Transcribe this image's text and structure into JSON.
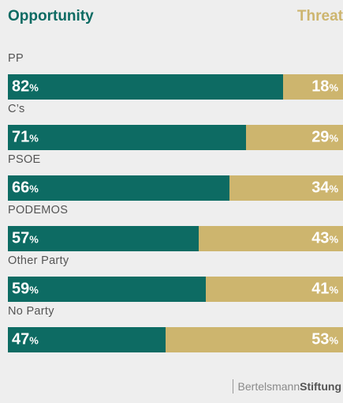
{
  "colors": {
    "opportunity": "#0d6b63",
    "threat": "#cdb56e"
  },
  "chart_data": {
    "type": "bar",
    "orientation": "horizontal",
    "stacked": true,
    "percent_suffix": "%",
    "legend": {
      "opportunity": "Opportunity",
      "threat": "Threat"
    },
    "categories": [
      "PP",
      "C’s",
      "PSOE",
      "PODEMOS",
      "Other Party",
      "No Party"
    ],
    "series": [
      {
        "name": "Opportunity",
        "values": [
          82,
          71,
          66,
          57,
          59,
          47
        ]
      },
      {
        "name": "Threat",
        "values": [
          18,
          29,
          34,
          43,
          41,
          53
        ]
      }
    ],
    "xlim": [
      0,
      100
    ]
  },
  "footer": {
    "brand_part1": "Bertelsmann",
    "brand_part2": "Stiftung"
  }
}
